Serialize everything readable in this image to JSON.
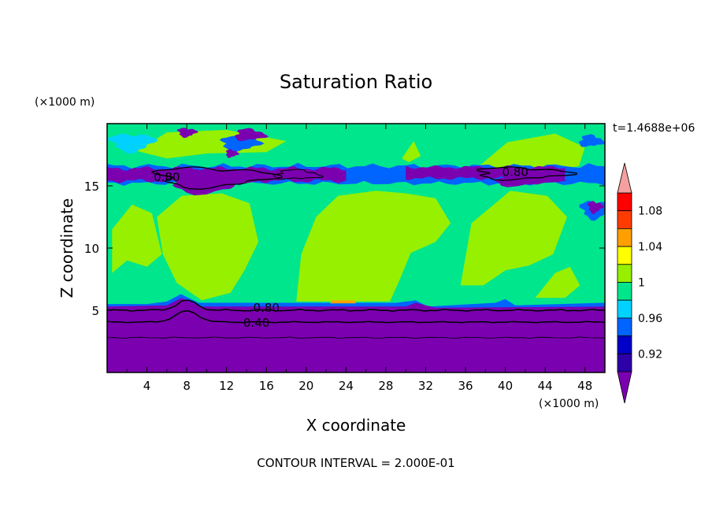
{
  "chart_data": {
    "type": "heatmap",
    "title": "Saturation Ratio",
    "xlabel": "X coordinate",
    "ylabel": "Z coordinate",
    "x_unit": "(×1000 m)",
    "y_unit": "(×1000 m)",
    "xlim": [
      0,
      50
    ],
    "ylim": [
      0,
      20
    ],
    "x_ticks": [
      4,
      8,
      12,
      16,
      20,
      24,
      28,
      32,
      36,
      40,
      44,
      48
    ],
    "y_ticks": [
      5,
      10,
      15
    ],
    "time_label": "t=1.4688e+06",
    "footer": "CONTOUR INTERVAL = 2.000E-01",
    "colorbar": {
      "labels": [
        "0.92",
        "0.96",
        "1",
        "1.04",
        "1.08"
      ],
      "label_values": [
        0.92,
        0.96,
        1.0,
        1.04,
        1.08
      ],
      "levels": [
        0.9,
        0.92,
        0.94,
        0.96,
        0.98,
        1.0,
        1.02,
        1.04,
        1.06,
        1.08,
        1.1
      ],
      "colors": [
        "#7a00b0",
        "#2d00a8",
        "#0000c8",
        "#0064ff",
        "#00d2ff",
        "#00e68c",
        "#96f000",
        "#ffff00",
        "#ffa000",
        "#ff3c00",
        "#ff0000",
        "#f5a0a0"
      ],
      "over_color": "#f5a0a0",
      "under_color": "#7a00b0"
    },
    "contour_labels": [
      {
        "text": "0.80",
        "x": 6,
        "z": 15.7
      },
      {
        "text": "0.80",
        "x": 41,
        "z": 16.1
      },
      {
        "text": "0.80",
        "x": 16,
        "z": 5.2
      },
      {
        "text": "0.40",
        "x": 15,
        "z": 4.0
      }
    ]
  }
}
